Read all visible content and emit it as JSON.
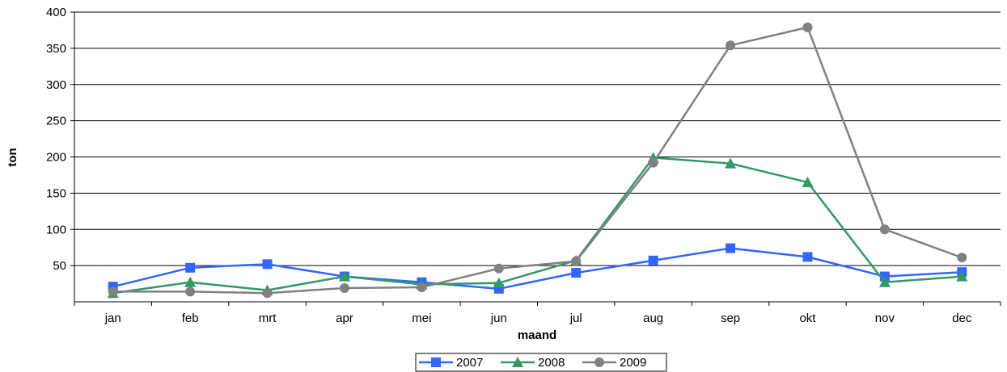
{
  "chart_data": {
    "type": "line",
    "categories": [
      "jan",
      "feb",
      "mrt",
      "apr",
      "mei",
      "jun",
      "jul",
      "aug",
      "sep",
      "okt",
      "nov",
      "dec"
    ],
    "series": [
      {
        "name": "2007",
        "color": "#3366ff",
        "marker": "square",
        "values": [
          21,
          47,
          52,
          35,
          27,
          18,
          40,
          57,
          74,
          62,
          35,
          41
        ]
      },
      {
        "name": "2008",
        "color": "#339966",
        "marker": "triangle",
        "values": [
          12,
          27,
          16,
          35,
          24,
          26,
          57,
          199,
          191,
          165,
          27,
          35
        ]
      },
      {
        "name": "2009",
        "color": "#808080",
        "marker": "circle",
        "values": [
          14,
          14,
          12,
          19,
          20,
          46,
          56,
          192,
          354,
          379,
          100,
          61
        ]
      }
    ],
    "xlabel": "maand",
    "ylabel": "ton",
    "ylim": [
      0,
      400
    ],
    "yticks": [
      50,
      100,
      150,
      200,
      250,
      300,
      350,
      400
    ],
    "grid": true,
    "legend_position": "bottom-center"
  }
}
